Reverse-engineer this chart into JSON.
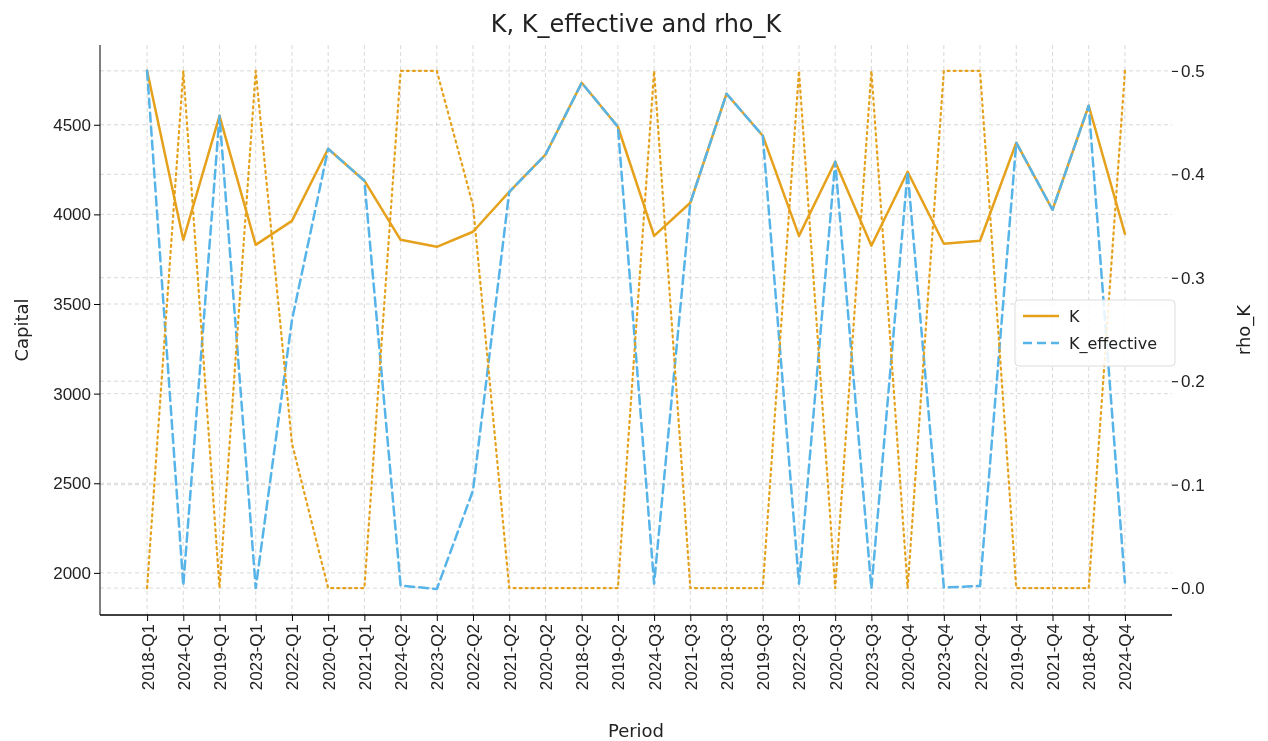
{
  "chart_data": {
    "type": "line",
    "title": "K, K_effective and rho_K",
    "xlabel": "Period",
    "ylabel": "Capital",
    "y2label": "rho_K",
    "categories": [
      "2018-Q1",
      "2024-Q1",
      "2019-Q1",
      "2023-Q1",
      "2022-Q1",
      "2020-Q1",
      "2021-Q1",
      "2024-Q2",
      "2023-Q2",
      "2022-Q2",
      "2021-Q2",
      "2020-Q2",
      "2018-Q2",
      "2019-Q2",
      "2024-Q3",
      "2021-Q3",
      "2018-Q3",
      "2019-Q3",
      "2022-Q3",
      "2020-Q3",
      "2023-Q3",
      "2020-Q4",
      "2023-Q4",
      "2022-Q4",
      "2019-Q4",
      "2021-Q4",
      "2018-Q4",
      "2024-Q4"
    ],
    "series": [
      {
        "name": "K",
        "color": "#e5a11c",
        "line_style": "solid",
        "values": [
          4801,
          3858,
          4550,
          3830,
          3964,
          4366,
          4188,
          3858,
          3819,
          3903,
          4126,
          4333,
          4734,
          4489,
          3880,
          4065,
          4673,
          4439,
          3880,
          4294,
          3825,
          4238,
          3836,
          3853,
          4400,
          4026,
          4606,
          3892
        ]
      },
      {
        "name": "K_effective",
        "color": "#56b4e9",
        "line_style": "dashed",
        "values": [
          4801,
          1929,
          4550,
          1915,
          3410,
          4366,
          4188,
          1929,
          1910,
          2460,
          4126,
          4333,
          4734,
          4489,
          1940,
          4065,
          4673,
          4439,
          1940,
          4294,
          1913,
          4238,
          1918,
          1927,
          4400,
          4026,
          4606,
          1946
        ]
      },
      {
        "color": "#e5a11c",
        "line_style": "dotted",
        "axis": "y2",
        "values": [
          0,
          0.5,
          0,
          0.5,
          0.14,
          0,
          0,
          0.5,
          0.5,
          0.37,
          0,
          0,
          0,
          0,
          0.5,
          0,
          0,
          0,
          0.5,
          0,
          0.5,
          0,
          0.5,
          0.5,
          0,
          0,
          0,
          0.5
        ]
      }
    ],
    "ylim": [
      1765,
      4945
    ],
    "yticks": [
      2000,
      2500,
      3000,
      3500,
      4000,
      4500
    ],
    "y2lim": [
      -0.026,
      0.525
    ],
    "y2ticks": [
      {
        "value": 0,
        "label": "0.0"
      },
      {
        "value": 0.1,
        "label": "0.1"
      },
      {
        "value": 0.2,
        "label": "0.2"
      },
      {
        "value": 0.3,
        "label": "0.3"
      },
      {
        "value": 0.4,
        "label": "0.4"
      },
      {
        "value": 0.5,
        "label": "0.5"
      }
    ],
    "grid": true,
    "legend": "center right"
  }
}
